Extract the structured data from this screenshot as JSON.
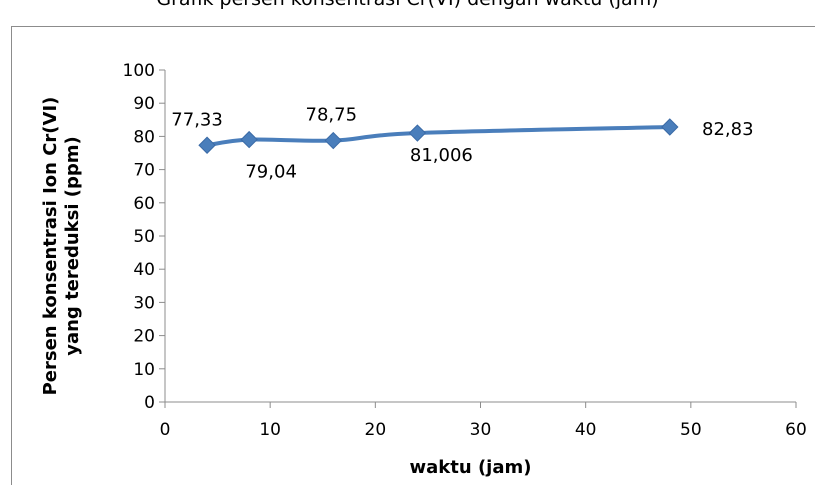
{
  "chart_data": {
    "type": "line",
    "title": "Grafik persen konsentrasi Cr(VI) dengan waktu (jam)",
    "xlabel": "waktu (jam)",
    "ylabel_lines": [
      "Persen konsentrasi Ion Cr(VI)",
      "yang tereduksi (ppm)"
    ],
    "xlim": [
      0,
      60
    ],
    "ylim": [
      0,
      100
    ],
    "x_ticks": [
      "0",
      "10",
      "20",
      "30",
      "40",
      "50",
      "60"
    ],
    "y_ticks": [
      "0",
      "10",
      "20",
      "30",
      "40",
      "50",
      "60",
      "70",
      "80",
      "90",
      "100"
    ],
    "grid": false,
    "series": [
      {
        "color": "#4a7ebb",
        "marker": "diamond",
        "points": [
          {
            "x": 4,
            "y": 77.33,
            "label": "77,33"
          },
          {
            "x": 8,
            "y": 79.04,
            "label": "79,04"
          },
          {
            "x": 16,
            "y": 78.75,
            "label": "78,75"
          },
          {
            "x": 24,
            "y": 81.006,
            "label": "81,006"
          },
          {
            "x": 48,
            "y": 82.83,
            "label": "82,83"
          }
        ]
      }
    ]
  }
}
